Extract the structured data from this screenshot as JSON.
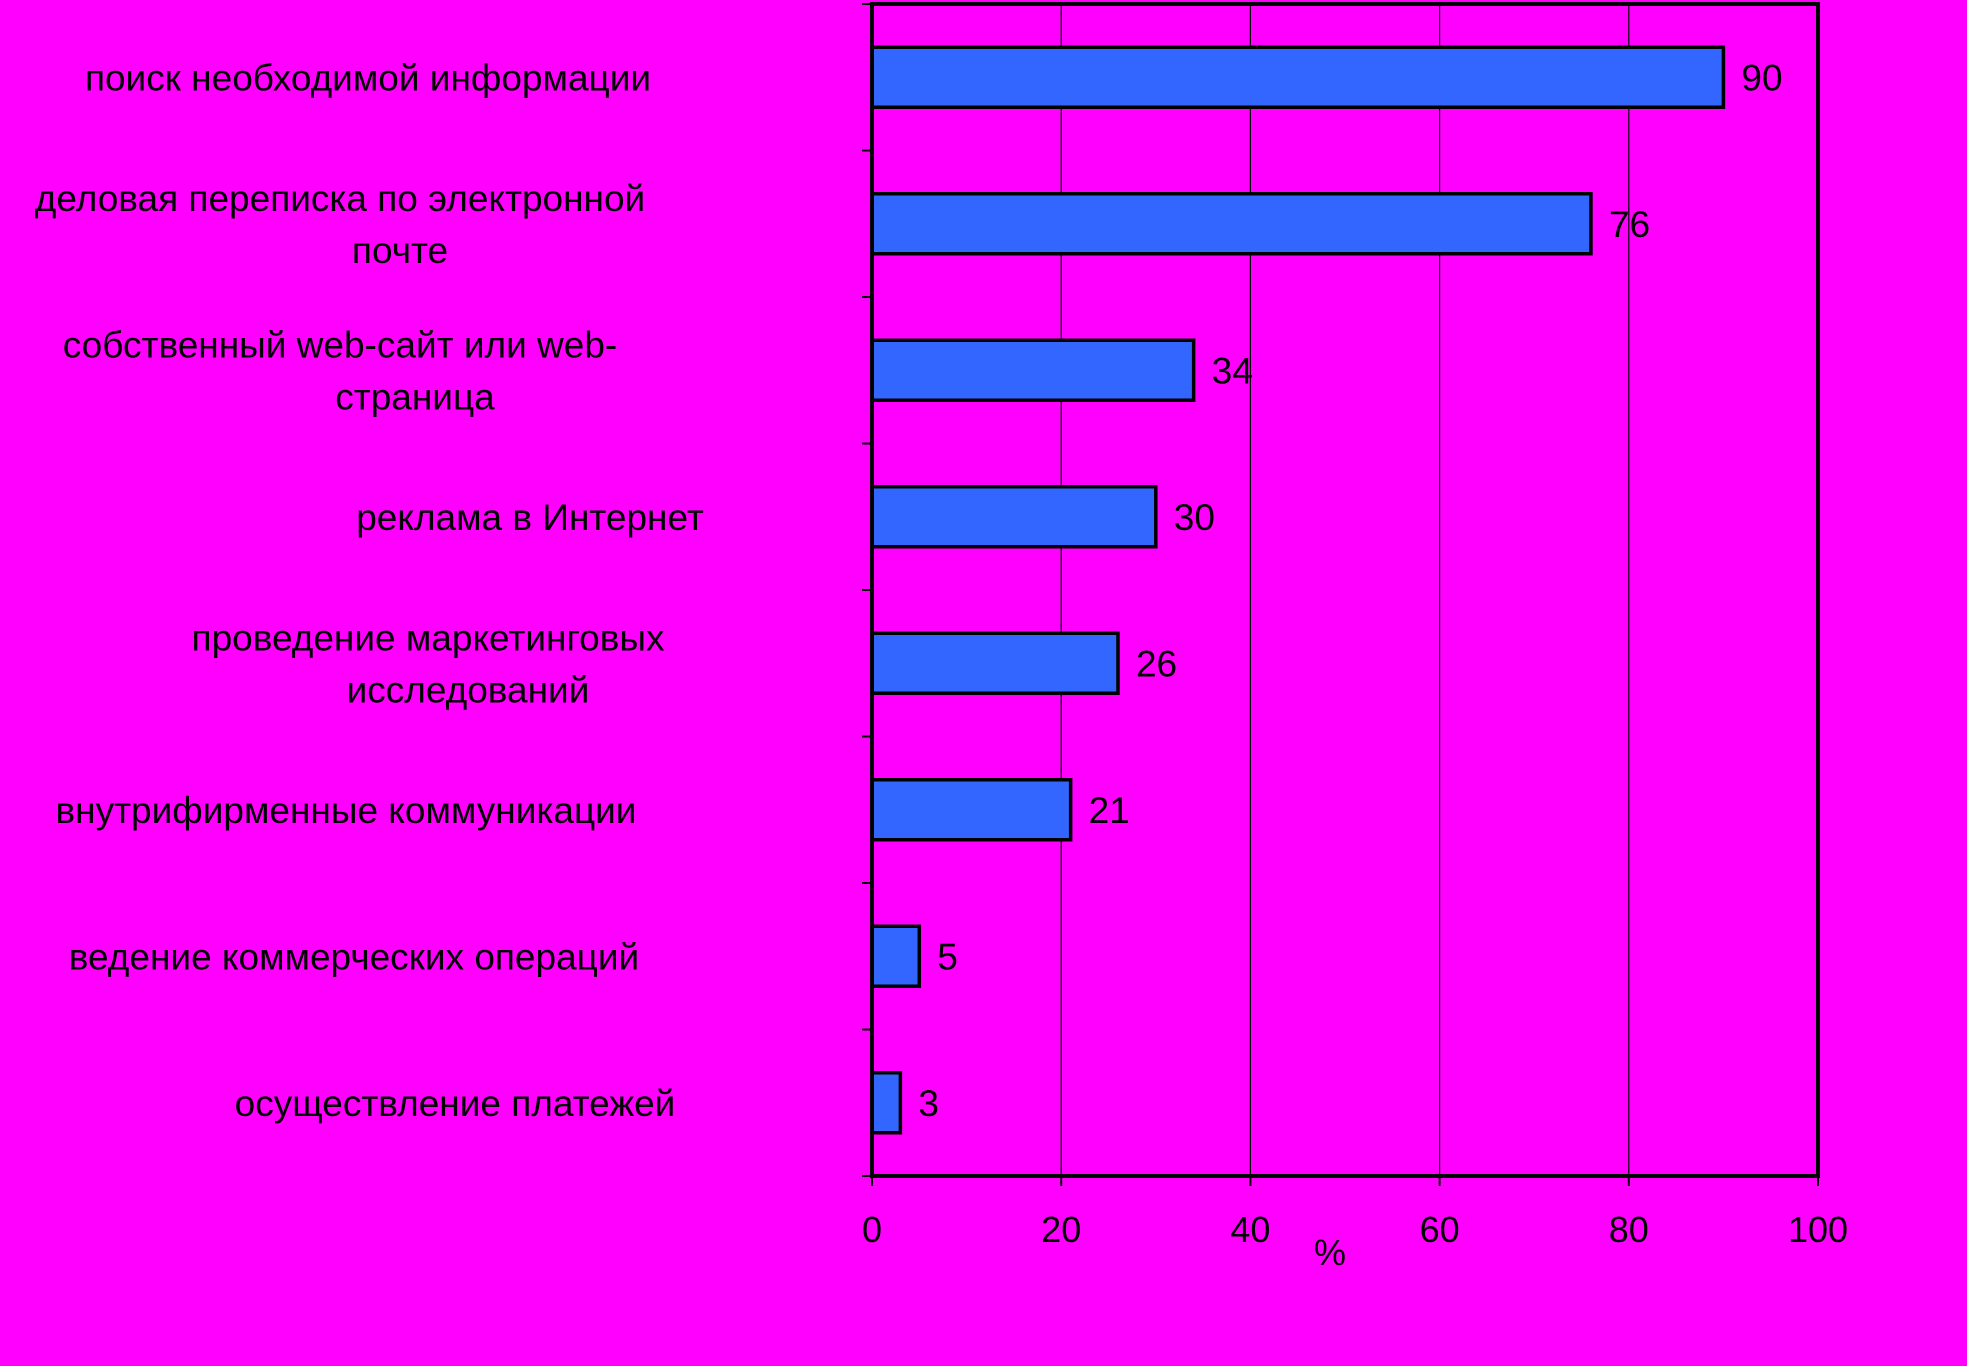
{
  "chart_data": {
    "type": "bar",
    "orientation": "horizontal",
    "categories": [
      "поиск необходимой информации",
      "деловая переписка по электронной почте",
      "собственный web-сайт или web-страница",
      "реклама в Интернет",
      "проведение маркетинговых исследований",
      "внутрифирменные коммуникации",
      "ведение коммерческих операций",
      "осуществление платежей"
    ],
    "category_label_lines": [
      [
        "поиск необходимой информации"
      ],
      [
        "деловая переписка по электронной",
        "почте"
      ],
      [
        "собственный web-сайт или web-",
        "страница"
      ],
      [
        "реклама в Интернет"
      ],
      [
        "проведение маркетинговых",
        "исследований"
      ],
      [
        "внутрифирменные коммуникации"
      ],
      [
        "ведение коммерческих операций"
      ],
      [
        "осуществление платежей"
      ]
    ],
    "values": [
      90,
      76,
      34,
      30,
      26,
      21,
      5,
      3
    ],
    "data_labels": [
      "90",
      "76",
      "34",
      "30",
      "26",
      "21",
      "5",
      "3"
    ],
    "xlabel": "%",
    "ylabel": "",
    "xlim": [
      0,
      100
    ],
    "x_ticks": [
      0,
      20,
      40,
      60,
      80,
      100
    ],
    "x_tick_labels": [
      "0",
      "20",
      "40",
      "60",
      "80",
      "100"
    ],
    "grid": "vertical",
    "legend": "none",
    "colors": {
      "background": "#ff00ff",
      "bar_fill": "#3366ff",
      "bar_stroke": "#000000",
      "gridline": "#000000",
      "text": "#000000"
    }
  }
}
